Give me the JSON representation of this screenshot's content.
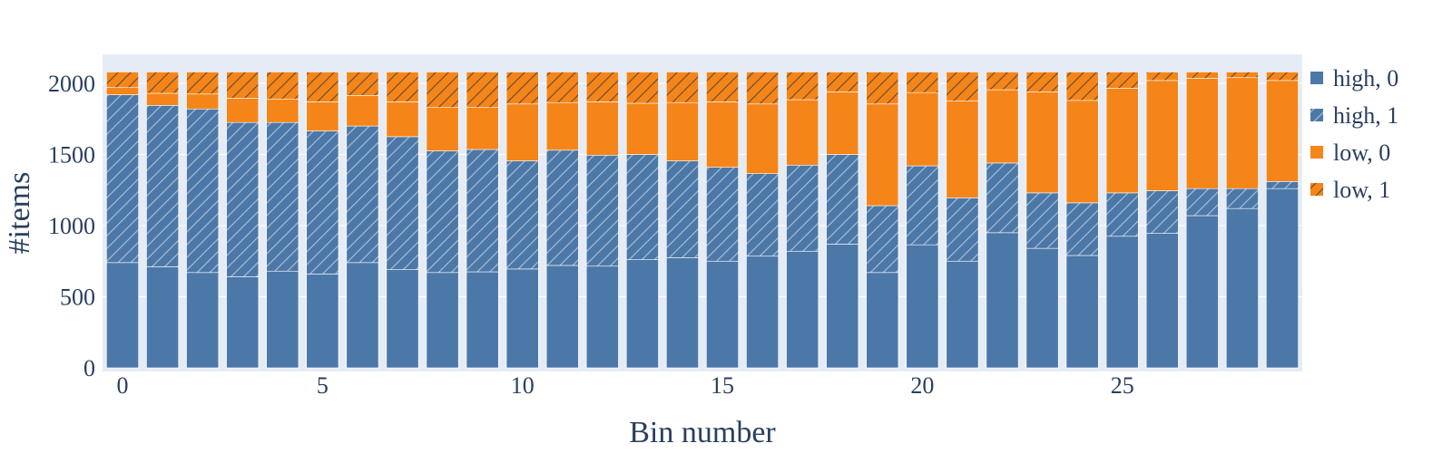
{
  "chart_data": {
    "type": "bar",
    "stacked": true,
    "title": "",
    "xlabel": "Bin number",
    "ylabel": "#items",
    "ylim": [
      0,
      2200
    ],
    "xlim": [
      -0.5,
      29.5
    ],
    "grid": true,
    "legend_position": "right",
    "x": [
      0,
      1,
      2,
      3,
      4,
      5,
      6,
      7,
      8,
      9,
      10,
      11,
      12,
      13,
      14,
      15,
      16,
      17,
      18,
      19,
      20,
      21,
      22,
      23,
      24,
      25,
      26,
      27,
      28,
      29
    ],
    "x_ticks": [
      0,
      5,
      10,
      15,
      20,
      25
    ],
    "y_ticks": [
      0,
      500,
      1000,
      1500,
      2000
    ],
    "series": [
      {
        "name": "high, 0",
        "color": "#4c78a8",
        "pattern": "none",
        "values": [
          740,
          710,
          670,
          640,
          680,
          660,
          740,
          690,
          670,
          675,
          695,
          720,
          715,
          760,
          775,
          750,
          785,
          820,
          870,
          670,
          865,
          750,
          950,
          840,
          790,
          925,
          945,
          1070,
          1120,
          1260
        ]
      },
      {
        "name": "high, 1",
        "color": "#4c78a8",
        "pattern": "hatch",
        "values": [
          1180,
          1135,
          1150,
          1085,
          1045,
          1005,
          960,
          935,
          855,
          860,
          760,
          810,
          780,
          740,
          680,
          660,
          580,
          605,
          630,
          470,
          555,
          445,
          490,
          390,
          370,
          305,
          300,
          190,
          140,
          50
        ]
      },
      {
        "name": "low, 0",
        "color": "#f58518",
        "pattern": "none",
        "values": [
          50,
          85,
          105,
          170,
          165,
          205,
          215,
          245,
          305,
          295,
          400,
          335,
          375,
          360,
          410,
          460,
          490,
          460,
          440,
          715,
          515,
          680,
          515,
          710,
          720,
          735,
          775,
          775,
          780,
          710
        ]
      },
      {
        "name": "low, 1",
        "color": "#f58518",
        "pattern": "hatch",
        "values": [
          110,
          150,
          155,
          185,
          190,
          210,
          165,
          210,
          250,
          250,
          225,
          215,
          210,
          220,
          215,
          210,
          225,
          195,
          140,
          225,
          145,
          205,
          125,
          140,
          200,
          115,
          60,
          45,
          40,
          60
        ]
      }
    ]
  }
}
